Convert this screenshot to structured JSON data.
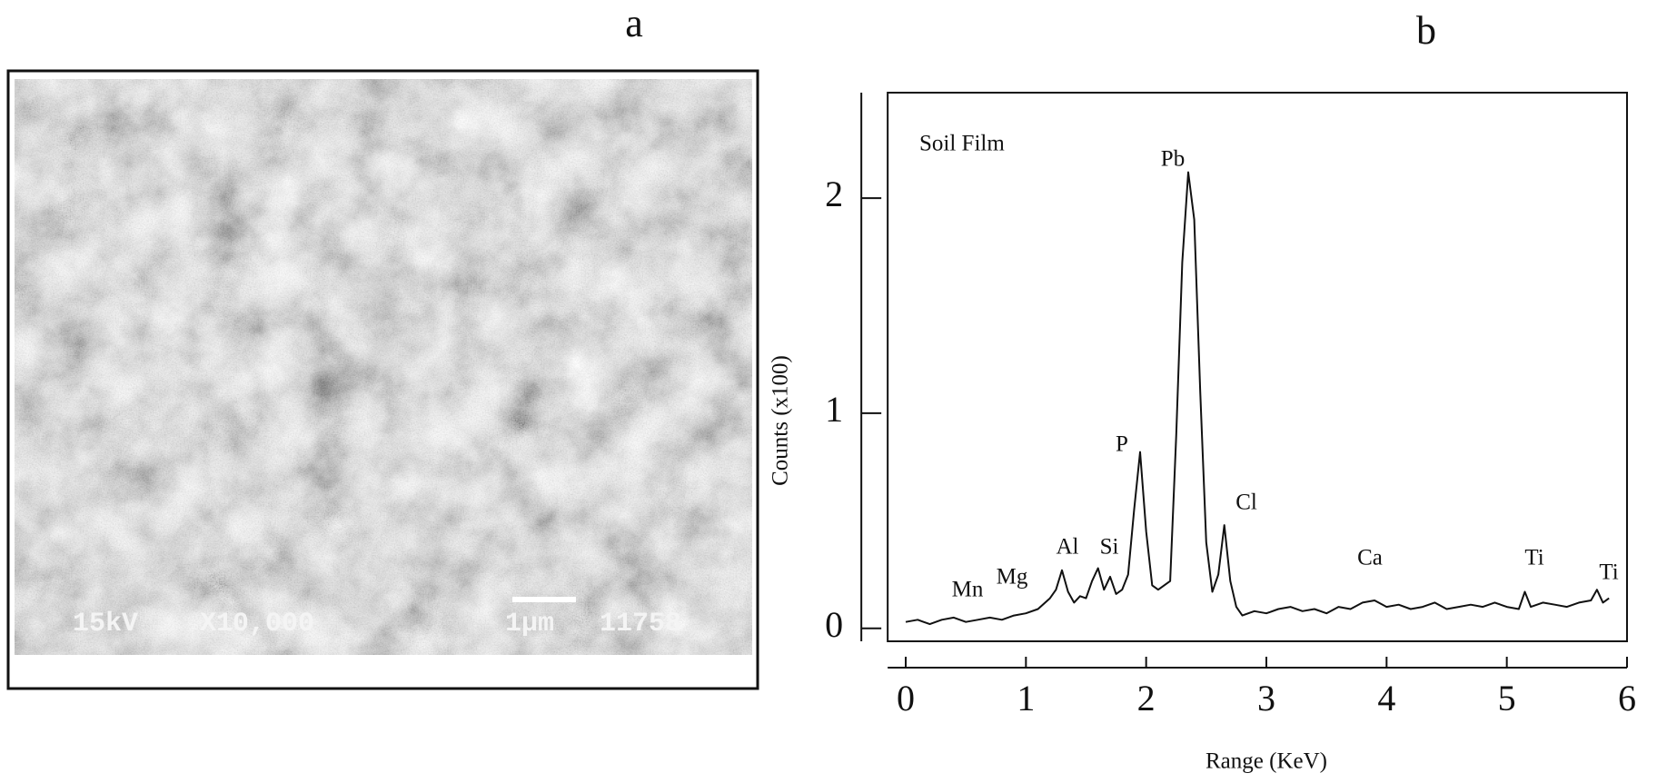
{
  "panel_a": {
    "label": "a",
    "overlay": [
      "15kV",
      "X10,000",
      "1μm",
      "11758"
    ]
  },
  "chart_data": {
    "type": "line",
    "label": "b",
    "annotation": "Soil Film",
    "xlabel": "Range (KeV)",
    "ylabel": "Counts (x100)",
    "x": [
      0.0,
      0.1,
      0.2,
      0.3,
      0.4,
      0.5,
      0.6,
      0.7,
      0.8,
      0.9,
      1.0,
      1.1,
      1.2,
      1.25,
      1.3,
      1.35,
      1.4,
      1.45,
      1.5,
      1.55,
      1.6,
      1.65,
      1.7,
      1.75,
      1.8,
      1.85,
      1.9,
      1.95,
      2.0,
      2.05,
      2.1,
      2.15,
      2.2,
      2.25,
      2.3,
      2.35,
      2.4,
      2.45,
      2.5,
      2.55,
      2.6,
      2.65,
      2.7,
      2.75,
      2.8,
      2.9,
      3.0,
      3.1,
      3.2,
      3.3,
      3.4,
      3.5,
      3.6,
      3.7,
      3.8,
      3.9,
      4.0,
      4.1,
      4.2,
      4.3,
      4.4,
      4.5,
      4.6,
      4.7,
      4.8,
      4.9,
      5.0,
      5.1,
      5.15,
      5.2,
      5.3,
      5.4,
      5.5,
      5.6,
      5.7,
      5.75,
      5.8,
      5.85
    ],
    "series": [
      {
        "color": "#111111",
        "values": [
          0.03,
          0.04,
          0.02,
          0.04,
          0.05,
          0.03,
          0.04,
          0.05,
          0.04,
          0.06,
          0.07,
          0.09,
          0.14,
          0.18,
          0.27,
          0.17,
          0.12,
          0.15,
          0.14,
          0.22,
          0.28,
          0.18,
          0.24,
          0.16,
          0.18,
          0.25,
          0.55,
          0.82,
          0.45,
          0.2,
          0.18,
          0.2,
          0.22,
          0.9,
          1.7,
          2.12,
          1.9,
          1.1,
          0.4,
          0.17,
          0.25,
          0.48,
          0.22,
          0.1,
          0.06,
          0.08,
          0.07,
          0.09,
          0.1,
          0.08,
          0.09,
          0.07,
          0.1,
          0.09,
          0.12,
          0.13,
          0.1,
          0.11,
          0.09,
          0.1,
          0.12,
          0.09,
          0.1,
          0.11,
          0.1,
          0.12,
          0.1,
          0.09,
          0.17,
          0.1,
          0.12,
          0.11,
          0.1,
          0.12,
          0.13,
          0.18,
          0.12,
          0.14
        ]
      }
    ],
    "peak_labels": [
      "Pb",
      "P",
      "Cl",
      "Al",
      "Si",
      "Mn",
      "Mg",
      "Ca",
      "Ti",
      "Ti"
    ],
    "xlim": [
      -0.15,
      6
    ],
    "ylim": [
      -0.06,
      2.49
    ],
    "xticks": [
      0,
      1,
      2,
      3,
      4,
      5,
      6
    ],
    "yticks": [
      0,
      1,
      2
    ],
    "grid": false
  }
}
